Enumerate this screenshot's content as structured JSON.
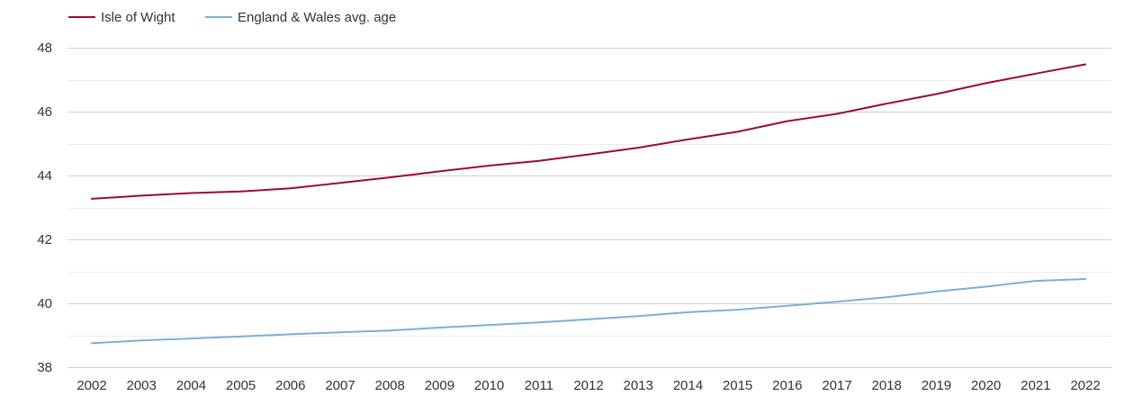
{
  "chart_data": {
    "type": "line",
    "title": "",
    "xlabel": "",
    "ylabel": "",
    "x": [
      "2002",
      "2003",
      "2004",
      "2005",
      "2006",
      "2007",
      "2008",
      "2009",
      "2010",
      "2011",
      "2012",
      "2013",
      "2014",
      "2015",
      "2016",
      "2017",
      "2018",
      "2019",
      "2020",
      "2021",
      "2022"
    ],
    "ylim": [
      38,
      48
    ],
    "yticks": [
      38,
      40,
      42,
      44,
      46,
      48
    ],
    "grid": true,
    "legend_position": "top-left",
    "series": [
      {
        "name": "Isle of Wight",
        "color": "#9c0b35",
        "values": [
          43.27,
          43.37,
          43.45,
          43.5,
          43.6,
          43.77,
          43.94,
          44.13,
          44.31,
          44.46,
          44.66,
          44.87,
          45.13,
          45.37,
          45.7,
          45.93,
          46.25,
          46.55,
          46.89,
          47.19,
          47.48
        ]
      },
      {
        "name": "England & Wales avg. age",
        "color": "#7ab0d4",
        "values": [
          38.75,
          38.84,
          38.9,
          38.96,
          39.03,
          39.09,
          39.15,
          39.24,
          39.32,
          39.4,
          39.5,
          39.6,
          39.72,
          39.8,
          39.92,
          40.05,
          40.19,
          40.37,
          40.52,
          40.7,
          40.76
        ]
      }
    ]
  }
}
